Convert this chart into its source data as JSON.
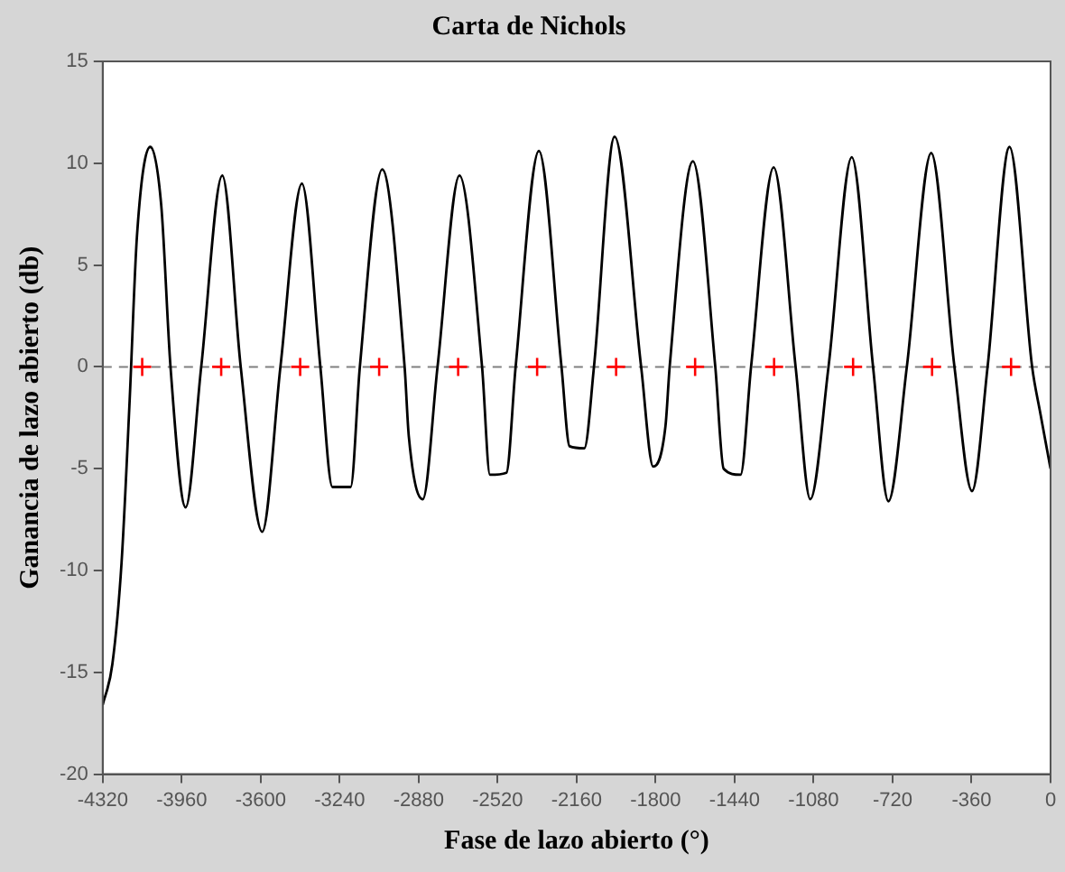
{
  "chart_data": {
    "type": "line",
    "title": "Carta de Nichols",
    "xlabel": "Fase de lazo abierto (°)",
    "ylabel": "Ganancia de lazo abierto (db)",
    "xlim": [
      -4320,
      0
    ],
    "xticks": [
      -4320,
      -3960,
      -3600,
      -3240,
      -2880,
      -2520,
      -2160,
      -1800,
      -1440,
      -1080,
      -720,
      -360,
      0
    ],
    "ylim": [
      -20,
      15
    ],
    "yticks": [
      -20,
      -15,
      -10,
      -5,
      0,
      5,
      10,
      15
    ],
    "grid": false,
    "legend": false,
    "ref_lines": [
      {
        "axis": "y",
        "value": 0,
        "color": "#808080",
        "line_style": "dashed"
      }
    ],
    "series": [
      {
        "color": "#000000",
        "marker": "none",
        "line_style": "solid",
        "x": [
          -4320,
          -4276,
          -4234,
          -4197,
          -4164,
          -4103,
          -4053,
          -4011,
          -3942,
          -3871,
          -3775,
          -3691,
          -3593,
          -3510,
          -3412,
          -3328,
          -3273,
          -3190,
          -3148,
          -3046,
          -2944,
          -2925,
          -2861,
          -2794,
          -2694,
          -2591,
          -2555,
          -2480,
          -2438,
          -2332,
          -2229,
          -2192,
          -2125,
          -2081,
          -1987,
          -1866,
          -1811,
          -1755,
          -1736,
          -1630,
          -1528,
          -1490,
          -1413,
          -1365,
          -1262,
          -1162,
          -1095,
          -1012,
          -906,
          -809,
          -739,
          -655,
          -544,
          -438,
          -358,
          -287,
          -187,
          -84,
          -48,
          0
        ],
        "values": [
          -16.6,
          -14.6,
          -9.6,
          -1.6,
          6.4,
          10.8,
          7.9,
          0,
          -6.9,
          0,
          9.4,
          0,
          -8.1,
          0,
          9.0,
          0,
          -5.9,
          -5.9,
          0,
          9.7,
          0,
          -3.4,
          -6.5,
          0,
          9.4,
          0,
          -5.3,
          -5.2,
          0,
          10.6,
          0,
          -3.9,
          -4.0,
          0,
          11.3,
          0,
          -4.9,
          -2.9,
          0,
          10.1,
          0,
          -5.0,
          -5.3,
          0,
          9.8,
          0,
          -6.5,
          0,
          10.3,
          0,
          -6.6,
          0,
          10.5,
          0,
          -6.1,
          0,
          10.8,
          0,
          -2.2,
          -5.0
        ]
      },
      {
        "type": "scatter",
        "color": "#ff0000",
        "marker": "cross",
        "x": [
          -4140,
          -3780,
          -3420,
          -3060,
          -2700,
          -2340,
          -1980,
          -1620,
          -1260,
          -900,
          -540,
          -180
        ],
        "values": [
          0,
          0,
          0,
          0,
          0,
          0,
          0,
          0,
          0,
          0,
          0,
          0
        ]
      }
    ]
  }
}
